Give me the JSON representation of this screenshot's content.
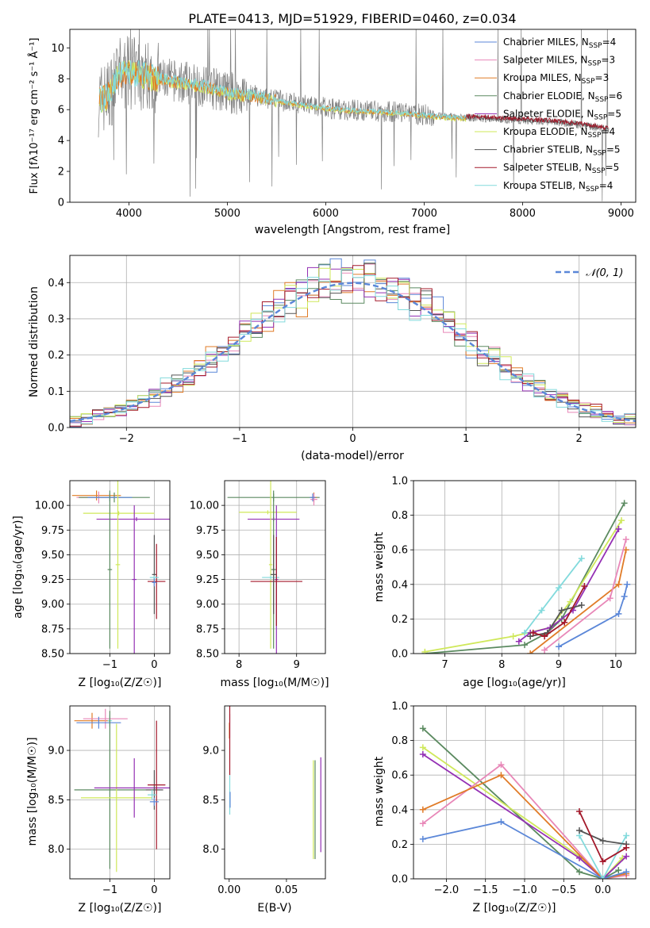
{
  "colors": {
    "chabrier_miles": "#5b87d8",
    "salpeter_miles": "#e887b8",
    "kroupa_miles": "#e07b27",
    "chabrier_elodie": "#5b8a60",
    "salpeter_elodie": "#9430b4",
    "kroupa_elodie": "#cfe85a",
    "chabrier_stelib": "#555555",
    "salpeter_stelib": "#a3182a",
    "kroupa_stelib": "#82dadc",
    "data": "#808080",
    "gauss": "#5b87d8"
  },
  "chart_data": [
    {
      "id": "spectrum",
      "type": "line",
      "title": "PLATE=0413, MJD=51929, FIBERID=0460, z=0.034",
      "xlabel": "wavelength [Angstrom, rest frame]",
      "ylabel": "Flux [fλ10⁻¹⁷ erg cm⁻² s⁻¹ Å⁻¹]",
      "xlim": [
        3400,
        9150
      ],
      "ylim": [
        0,
        11.2
      ],
      "xticks": [
        4000,
        5000,
        6000,
        7000,
        8000,
        9000
      ],
      "yticks": [
        0,
        2,
        4,
        6,
        8,
        10
      ],
      "grid": false,
      "legend_position": "top-right",
      "legend": [
        {
          "text": "Chabrier MILES, N",
          "sub": "SSP",
          "val": "=4",
          "color": "chabrier_miles"
        },
        {
          "text": "Salpeter MILES, N",
          "sub": "SSP",
          "val": "=3",
          "color": "salpeter_miles"
        },
        {
          "text": "Kroupa MILES, N",
          "sub": "SSP",
          "val": "=3",
          "color": "kroupa_miles"
        },
        {
          "text": "Chabrier ELODIE, N",
          "sub": "SSP",
          "val": "=6",
          "color": "chabrier_elodie"
        },
        {
          "text": "Salpeter ELODIE, N",
          "sub": "SSP",
          "val": "=5",
          "color": "salpeter_elodie"
        },
        {
          "text": "Kroupa ELODIE, N",
          "sub": "SSP",
          "val": "=4",
          "color": "kroupa_elodie"
        },
        {
          "text": "Chabrier STELIB, N",
          "sub": "SSP",
          "val": "=5",
          "color": "chabrier_stelib"
        },
        {
          "text": "Salpeter STELIB, N",
          "sub": "SSP",
          "val": "=5",
          "color": "salpeter_stelib"
        },
        {
          "text": "Kroupa STELIB, N",
          "sub": "SSP",
          "val": "=4",
          "color": "kroupa_stelib"
        }
      ],
      "continuum": [
        [
          3700,
          6.6
        ],
        [
          3800,
          7.0
        ],
        [
          3900,
          8.3
        ],
        [
          4000,
          8.4
        ],
        [
          4200,
          8.2
        ],
        [
          4500,
          7.8
        ],
        [
          4800,
          7.5
        ],
        [
          5000,
          7.1
        ],
        [
          5300,
          6.9
        ],
        [
          5600,
          6.5
        ],
        [
          5900,
          6.2
        ],
        [
          6200,
          6.0
        ],
        [
          6500,
          5.9
        ],
        [
          6800,
          5.8
        ],
        [
          7100,
          5.6
        ],
        [
          7400,
          5.5
        ],
        [
          7700,
          5.4
        ],
        [
          8000,
          5.3
        ],
        [
          8300,
          5.2
        ],
        [
          8600,
          5.0
        ],
        [
          8900,
          4.7
        ]
      ],
      "model_range": {
        "kroupa_miles": [
          3700,
          7430
        ],
        "kroupa_stelib": [
          3700,
          7430
        ],
        "salpeter_stelib": [
          7430,
          8870
        ],
        "chabrier_stelib": [
          7430,
          8870
        ]
      }
    },
    {
      "id": "residuals",
      "type": "bar",
      "xlabel": "(data-model)/error",
      "ylabel": "Normed distribution",
      "xlim": [
        -2.5,
        2.5
      ],
      "ylim": [
        0,
        0.475
      ],
      "xticks": [
        -2,
        -1,
        0,
        1,
        2
      ],
      "yticks": [
        0.0,
        0.1,
        0.2,
        0.3,
        0.4
      ],
      "grid": true,
      "legend_position": "top-right",
      "gauss_label": "𝒩(0, 1)",
      "bin_width": 0.1
    },
    {
      "id": "age-vs-z",
      "type": "scatter",
      "xlabel": "Z [log₁₀(Z/Z☉)]",
      "ylabel": "age  [log₁₀(age/yr)]",
      "xlim": [
        -1.9,
        0.35
      ],
      "ylim": [
        8.5,
        10.25
      ],
      "xticks": [
        -1,
        0
      ],
      "yticks": [
        8.5,
        8.75,
        9.0,
        9.25,
        9.5,
        9.75,
        10.0
      ],
      "grid": true,
      "points": [
        {
          "c": "kroupa_miles",
          "x": -1.3,
          "xe": 0.55,
          "y": 10.1,
          "ye": 0.05
        },
        {
          "c": "salpeter_miles",
          "x": -1.25,
          "xe": 0.5,
          "y": 10.08,
          "ye": 0.06
        },
        {
          "c": "chabrier_elodie",
          "x": -0.9,
          "xe": 0.8,
          "y": 10.08,
          "ye": 0.05
        },
        {
          "c": "chabrier_miles",
          "x": -1.0,
          "xe": 0.5,
          "y": 10.08,
          "ye": 0.04
        },
        {
          "c": "kroupa_elodie",
          "x": -0.8,
          "xe": 0.8,
          "y": 9.92,
          "ye": 0.02
        },
        {
          "c": "salpeter_elodie",
          "x": -0.4,
          "xe": 0.9,
          "y": 9.86,
          "ye": 0.02
        },
        {
          "c": "chabrier_elodie",
          "x": -1.0,
          "xe": 0.05,
          "y": 9.35,
          "ye": 0.8
        },
        {
          "c": "kroupa_elodie",
          "x": -0.82,
          "xe": 0.05,
          "y": 9.4,
          "ye": 0.85
        },
        {
          "c": "salpeter_elodie",
          "x": -0.45,
          "xe": 0.05,
          "y": 9.25,
          "ye": 0.75
        },
        {
          "c": "chabrier_stelib",
          "x": 0.0,
          "xe": 0.05,
          "y": 9.3,
          "ye": 0.4
        },
        {
          "c": "salpeter_stelib",
          "x": 0.05,
          "xe": 0.2,
          "y": 9.23,
          "ye": 0.38
        },
        {
          "c": "kroupa_stelib",
          "x": 0.0,
          "xe": 0.1,
          "y": 9.27,
          "ye": 0.02
        },
        {
          "c": "chabrier_miles",
          "x": 0.0,
          "xe": 0.05,
          "y": 9.22,
          "ye": 0.04
        }
      ]
    },
    {
      "id": "age-vs-mass",
      "type": "scatter",
      "xlabel": "mass [log₁₀(M/M☉)]",
      "ylabel": "",
      "xlim": [
        7.75,
        9.5
      ],
      "ylim": [
        8.5,
        10.25
      ],
      "xticks": [
        8,
        9
      ],
      "yticks": [
        8.5,
        8.75,
        9.0,
        9.25,
        9.5,
        9.75,
        10.0
      ],
      "grid": true,
      "points": [
        {
          "c": "chabrier_elodie",
          "x": 8.6,
          "xe": 0.8,
          "y": 10.08,
          "ye": 0.04
        },
        {
          "c": "kroupa_elodie",
          "x": 8.5,
          "xe": 0.5,
          "y": 9.93,
          "ye": 0.02
        },
        {
          "c": "salpeter_elodie",
          "x": 8.6,
          "xe": 0.45,
          "y": 9.86,
          "ye": 0.02
        },
        {
          "c": "kroupa_miles",
          "x": 9.3,
          "xe": 0.05,
          "y": 10.08,
          "ye": 0.05
        },
        {
          "c": "salpeter_miles",
          "x": 9.3,
          "xe": 0.06,
          "y": 10.06,
          "ye": 0.06
        },
        {
          "c": "chabrier_miles",
          "x": 9.28,
          "xe": 0.05,
          "y": 10.08,
          "ye": 0.04
        },
        {
          "c": "chabrier_elodie",
          "x": 8.6,
          "xe": 0.04,
          "y": 9.35,
          "ye": 0.8
        },
        {
          "c": "kroupa_elodie",
          "x": 8.55,
          "xe": 0.03,
          "y": 9.4,
          "ye": 0.85
        },
        {
          "c": "salpeter_elodie",
          "x": 8.65,
          "xe": 0.03,
          "y": 9.25,
          "ye": 0.75
        },
        {
          "c": "kroupa_stelib",
          "x": 8.55,
          "xe": 0.15,
          "y": 9.27,
          "ye": 0.02
        },
        {
          "c": "salpeter_stelib",
          "x": 8.65,
          "xe": 0.45,
          "y": 9.23,
          "ye": 0.45
        },
        {
          "c": "chabrier_stelib",
          "x": 8.6,
          "xe": 0.05,
          "y": 9.3,
          "ye": 0.4
        }
      ]
    },
    {
      "id": "mass-weight-vs-age",
      "type": "line",
      "xlabel": "age  [log₁₀(age/yr)]",
      "ylabel": "mass weight",
      "xlim": [
        6.45,
        10.35
      ],
      "ylim": [
        0,
        1.0
      ],
      "xticks": [
        7,
        8,
        9,
        10
      ],
      "yticks": [
        0.0,
        0.2,
        0.4,
        0.6,
        0.8,
        1.0
      ],
      "grid": true,
      "series": [
        {
          "c": "chabrier_elodie",
          "x": [
            6.65,
            8.4,
            8.8,
            9.05,
            10.15
          ],
          "y": [
            0.0,
            0.05,
            0.12,
            0.2,
            0.87
          ]
        },
        {
          "c": "kroupa_elodie",
          "x": [
            6.65,
            8.2,
            8.85,
            9.2,
            10.1
          ],
          "y": [
            0.01,
            0.1,
            0.15,
            0.3,
            0.77
          ]
        },
        {
          "c": "salpeter_elodie",
          "x": [
            8.3,
            8.5,
            8.85,
            9.25,
            10.05
          ],
          "y": [
            0.07,
            0.12,
            0.15,
            0.25,
            0.72
          ]
        },
        {
          "c": "kroupa_stelib",
          "x": [
            8.4,
            8.7,
            9.0,
            9.4
          ],
          "y": [
            0.12,
            0.25,
            0.38,
            0.55
          ]
        },
        {
          "c": "chabrier_stelib",
          "x": [
            8.5,
            8.8,
            9.05,
            9.4
          ],
          "y": [
            0.1,
            0.12,
            0.25,
            0.28
          ]
        },
        {
          "c": "salpeter_stelib",
          "x": [
            8.55,
            8.75,
            9.1,
            9.45
          ],
          "y": [
            0.12,
            0.1,
            0.18,
            0.39
          ]
        },
        {
          "c": "chabrier_miles",
          "x": [
            9.0,
            10.05,
            10.15,
            10.2
          ],
          "y": [
            0.04,
            0.23,
            0.33,
            0.4
          ]
        },
        {
          "c": "kroupa_miles",
          "x": [
            8.5,
            10.05,
            10.18
          ],
          "y": [
            0.0,
            0.4,
            0.6
          ]
        },
        {
          "c": "salpeter_miles",
          "x": [
            8.75,
            9.9,
            10.18
          ],
          "y": [
            0.02,
            0.32,
            0.66
          ]
        }
      ]
    },
    {
      "id": "mass-vs-z",
      "type": "scatter",
      "xlabel": "Z [log₁₀(Z/Z☉)]",
      "ylabel": "mass [log₁₀(M/M☉)]",
      "xlim": [
        -1.9,
        0.35
      ],
      "ylim": [
        7.7,
        9.45
      ],
      "xticks": [
        -1,
        0
      ],
      "yticks": [
        8.0,
        8.5,
        9.0
      ],
      "grid": true,
      "points": [
        {
          "c": "kroupa_miles",
          "x": -1.4,
          "xe": 0.4,
          "y": 9.3,
          "ye": 0.08
        },
        {
          "c": "salpeter_miles",
          "x": -1.1,
          "xe": 0.5,
          "y": 9.32,
          "ye": 0.1
        },
        {
          "c": "chabrier_miles",
          "x": -1.25,
          "xe": 0.5,
          "y": 9.28,
          "ye": 0.06
        },
        {
          "c": "kroupa_stelib",
          "x": -1.0,
          "xe": 0.05,
          "y": 9.3,
          "ye": 0.06
        },
        {
          "c": "chabrier_elodie",
          "x": -1.0,
          "xe": 0.8,
          "y": 8.6,
          "ye": 0.8
        },
        {
          "c": "kroupa_elodie",
          "x": -0.85,
          "xe": 0.8,
          "y": 8.52,
          "ye": 0.75
        },
        {
          "c": "salpeter_elodie",
          "x": -0.45,
          "xe": 0.9,
          "y": 8.62,
          "ye": 0.3
        },
        {
          "c": "chabrier_stelib",
          "x": 0.0,
          "xe": 0.2,
          "y": 8.6,
          "ye": 0.2
        },
        {
          "c": "salpeter_stelib",
          "x": 0.05,
          "xe": 0.2,
          "y": 8.65,
          "ye": 0.65
        },
        {
          "c": "chabrier_miles",
          "x": 0.0,
          "xe": 0.1,
          "y": 8.48,
          "ye": 0.04
        },
        {
          "c": "kroupa_stelib",
          "x": -0.05,
          "xe": 0.1,
          "y": 8.55,
          "ye": 0.05
        }
      ]
    },
    {
      "id": "mass-vs-ebv",
      "type": "scatter",
      "xlabel": "E(B-V)",
      "ylabel": "",
      "xlim": [
        -0.004,
        0.084
      ],
      "ylim": [
        7.7,
        9.45
      ],
      "xticks": [
        0.0,
        0.05
      ],
      "yticks": [
        8.0,
        8.5,
        9.0
      ],
      "grid": false,
      "points": [
        {
          "c": "salpeter_miles",
          "x": 0.0005,
          "xe": 0.0,
          "y": 9.25,
          "ye": 0.12
        },
        {
          "c": "kroupa_miles",
          "x": 0.0002,
          "xe": 0.0,
          "y": 9.2,
          "ye": 0.08
        },
        {
          "c": "salpeter_stelib",
          "x": 0.0005,
          "xe": 0.0,
          "y": 9.1,
          "ye": 0.35
        },
        {
          "c": "kroupa_stelib",
          "x": 0.0005,
          "xe": 0.0,
          "y": 8.55,
          "ye": 0.2
        },
        {
          "c": "chabrier_miles",
          "x": 0.0008,
          "xe": 0.0,
          "y": 8.5,
          "ye": 0.08
        },
        {
          "c": "kroupa_elodie",
          "x": 0.0735,
          "xe": 0.0,
          "y": 8.4,
          "ye": 0.5
        },
        {
          "c": "chabrier_elodie",
          "x": 0.075,
          "xe": 0.0,
          "y": 8.4,
          "ye": 0.5
        },
        {
          "c": "salpeter_elodie",
          "x": 0.08,
          "xe": 0.0,
          "y": 8.45,
          "ye": 0.48
        }
      ]
    },
    {
      "id": "mass-weight-vs-z",
      "type": "line",
      "xlabel": "Z [log₁₀(Z/Z☉)]",
      "ylabel": "mass weight",
      "xlim": [
        -2.42,
        0.42
      ],
      "ylim": [
        0,
        1.0
      ],
      "xticks": [
        -2.0,
        -1.5,
        -1.0,
        -0.5,
        0.0
      ],
      "yticks": [
        0.0,
        0.2,
        0.4,
        0.6,
        0.8,
        1.0
      ],
      "grid": true,
      "series": [
        {
          "c": "chabrier_elodie",
          "x": [
            -2.3,
            -0.3,
            0.0,
            0.2
          ],
          "y": [
            0.87,
            0.04,
            0.0,
            0.05
          ]
        },
        {
          "c": "kroupa_elodie",
          "x": [
            -2.3,
            -0.3,
            0.0,
            0.25
          ],
          "y": [
            0.76,
            0.13,
            0.0,
            0.12
          ]
        },
        {
          "c": "salpeter_elodie",
          "x": [
            -2.3,
            -0.3,
            0.0,
            0.3
          ],
          "y": [
            0.72,
            0.12,
            0.0,
            0.13
          ]
        },
        {
          "c": "salpeter_miles",
          "x": [
            -2.3,
            -1.3,
            0.0,
            0.3
          ],
          "y": [
            0.32,
            0.66,
            0.0,
            0.02
          ]
        },
        {
          "c": "kroupa_miles",
          "x": [
            -2.3,
            -1.3,
            0.0,
            0.3
          ],
          "y": [
            0.4,
            0.6,
            0.0,
            0.03
          ]
        },
        {
          "c": "chabrier_miles",
          "x": [
            -2.3,
            -1.3,
            0.0,
            0.3
          ],
          "y": [
            0.23,
            0.33,
            0.0,
            0.04
          ]
        },
        {
          "c": "kroupa_stelib",
          "x": [
            -0.3,
            0.0,
            0.3
          ],
          "y": [
            0.25,
            0.0,
            0.25
          ]
        },
        {
          "c": "chabrier_stelib",
          "x": [
            -0.3,
            0.0,
            0.3
          ],
          "y": [
            0.28,
            0.22,
            0.2
          ]
        },
        {
          "c": "salpeter_stelib",
          "x": [
            -0.3,
            0.0,
            0.3
          ],
          "y": [
            0.39,
            0.1,
            0.18
          ]
        }
      ]
    }
  ]
}
